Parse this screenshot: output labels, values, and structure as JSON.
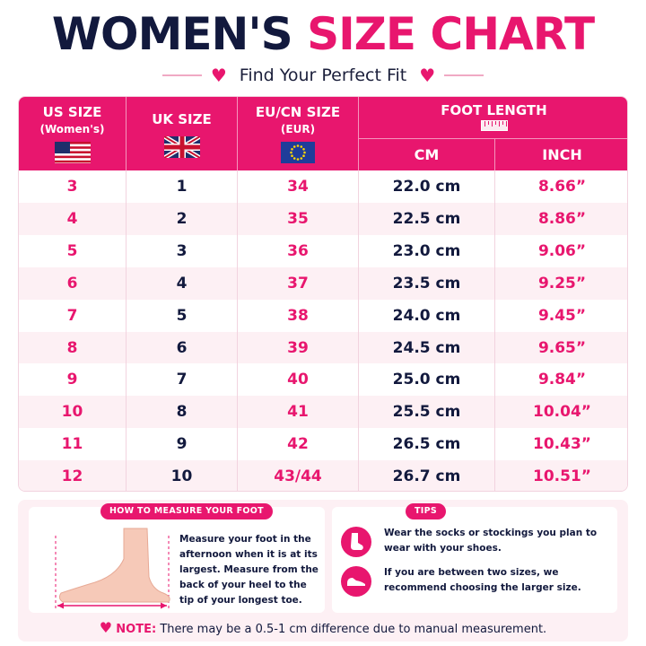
{
  "header": {
    "title_dark": "WOMEN'S",
    "title_pink": "SIZE CHART",
    "subtitle": "Find Your Perfect Fit"
  },
  "table": {
    "columns": {
      "us": {
        "label": "US SIZE",
        "sub": "(Women's)",
        "flag": "us-flag-icon"
      },
      "uk": {
        "label": "UK SIZE",
        "flag": "uk-flag-icon"
      },
      "eu": {
        "label": "EU/CN SIZE",
        "sub": "(EUR)",
        "flag": "eu-flag-icon"
      },
      "foot": {
        "label": "FOOT LENGTH",
        "icon": "ruler-icon",
        "cm": "CM",
        "inch": "INCH"
      }
    },
    "rows": [
      {
        "us": "3",
        "uk": "1",
        "eu": "34",
        "cm": "22.0 cm",
        "inch": "8.66”"
      },
      {
        "us": "4",
        "uk": "2",
        "eu": "35",
        "cm": "22.5 cm",
        "inch": "8.86”"
      },
      {
        "us": "5",
        "uk": "3",
        "eu": "36",
        "cm": "23.0 cm",
        "inch": "9.06”"
      },
      {
        "us": "6",
        "uk": "4",
        "eu": "37",
        "cm": "23.5 cm",
        "inch": "9.25”"
      },
      {
        "us": "7",
        "uk": "5",
        "eu": "38",
        "cm": "24.0 cm",
        "inch": "9.45”"
      },
      {
        "us": "8",
        "uk": "6",
        "eu": "39",
        "cm": "24.5 cm",
        "inch": "9.65”"
      },
      {
        "us": "9",
        "uk": "7",
        "eu": "40",
        "cm": "25.0 cm",
        "inch": "9.84”"
      },
      {
        "us": "10",
        "uk": "8",
        "eu": "41",
        "cm": "25.5 cm",
        "inch": "10.04”"
      },
      {
        "us": "11",
        "uk": "9",
        "eu": "42",
        "cm": "26.5 cm",
        "inch": "10.43”"
      },
      {
        "us": "12",
        "uk": "10",
        "eu": "43/44",
        "cm": "26.7 cm",
        "inch": "10.51”"
      }
    ]
  },
  "measure": {
    "title": "HOW TO MEASURE YOUR FOOT",
    "text": "Measure your foot in the afternoon when it is at its largest. Measure from the back of your heel to the tip of your longest toe.",
    "icon": "foot-measure-illustration"
  },
  "tips": {
    "title": "TIPS",
    "items": [
      {
        "icon": "socks-icon",
        "text": "Wear the socks or stockings you plan to wear with your shoes."
      },
      {
        "icon": "shoe-icon",
        "text": "If you are between two sizes, we recommend choosing the larger size."
      }
    ]
  },
  "note": {
    "label": "NOTE:",
    "text": "There may be a 0.5-1 cm difference due to manual measurement.",
    "icon": "heart-icon"
  },
  "colors": {
    "accent": "#e8166e",
    "navy": "#12193d",
    "stripe": "#fdf0f4"
  }
}
